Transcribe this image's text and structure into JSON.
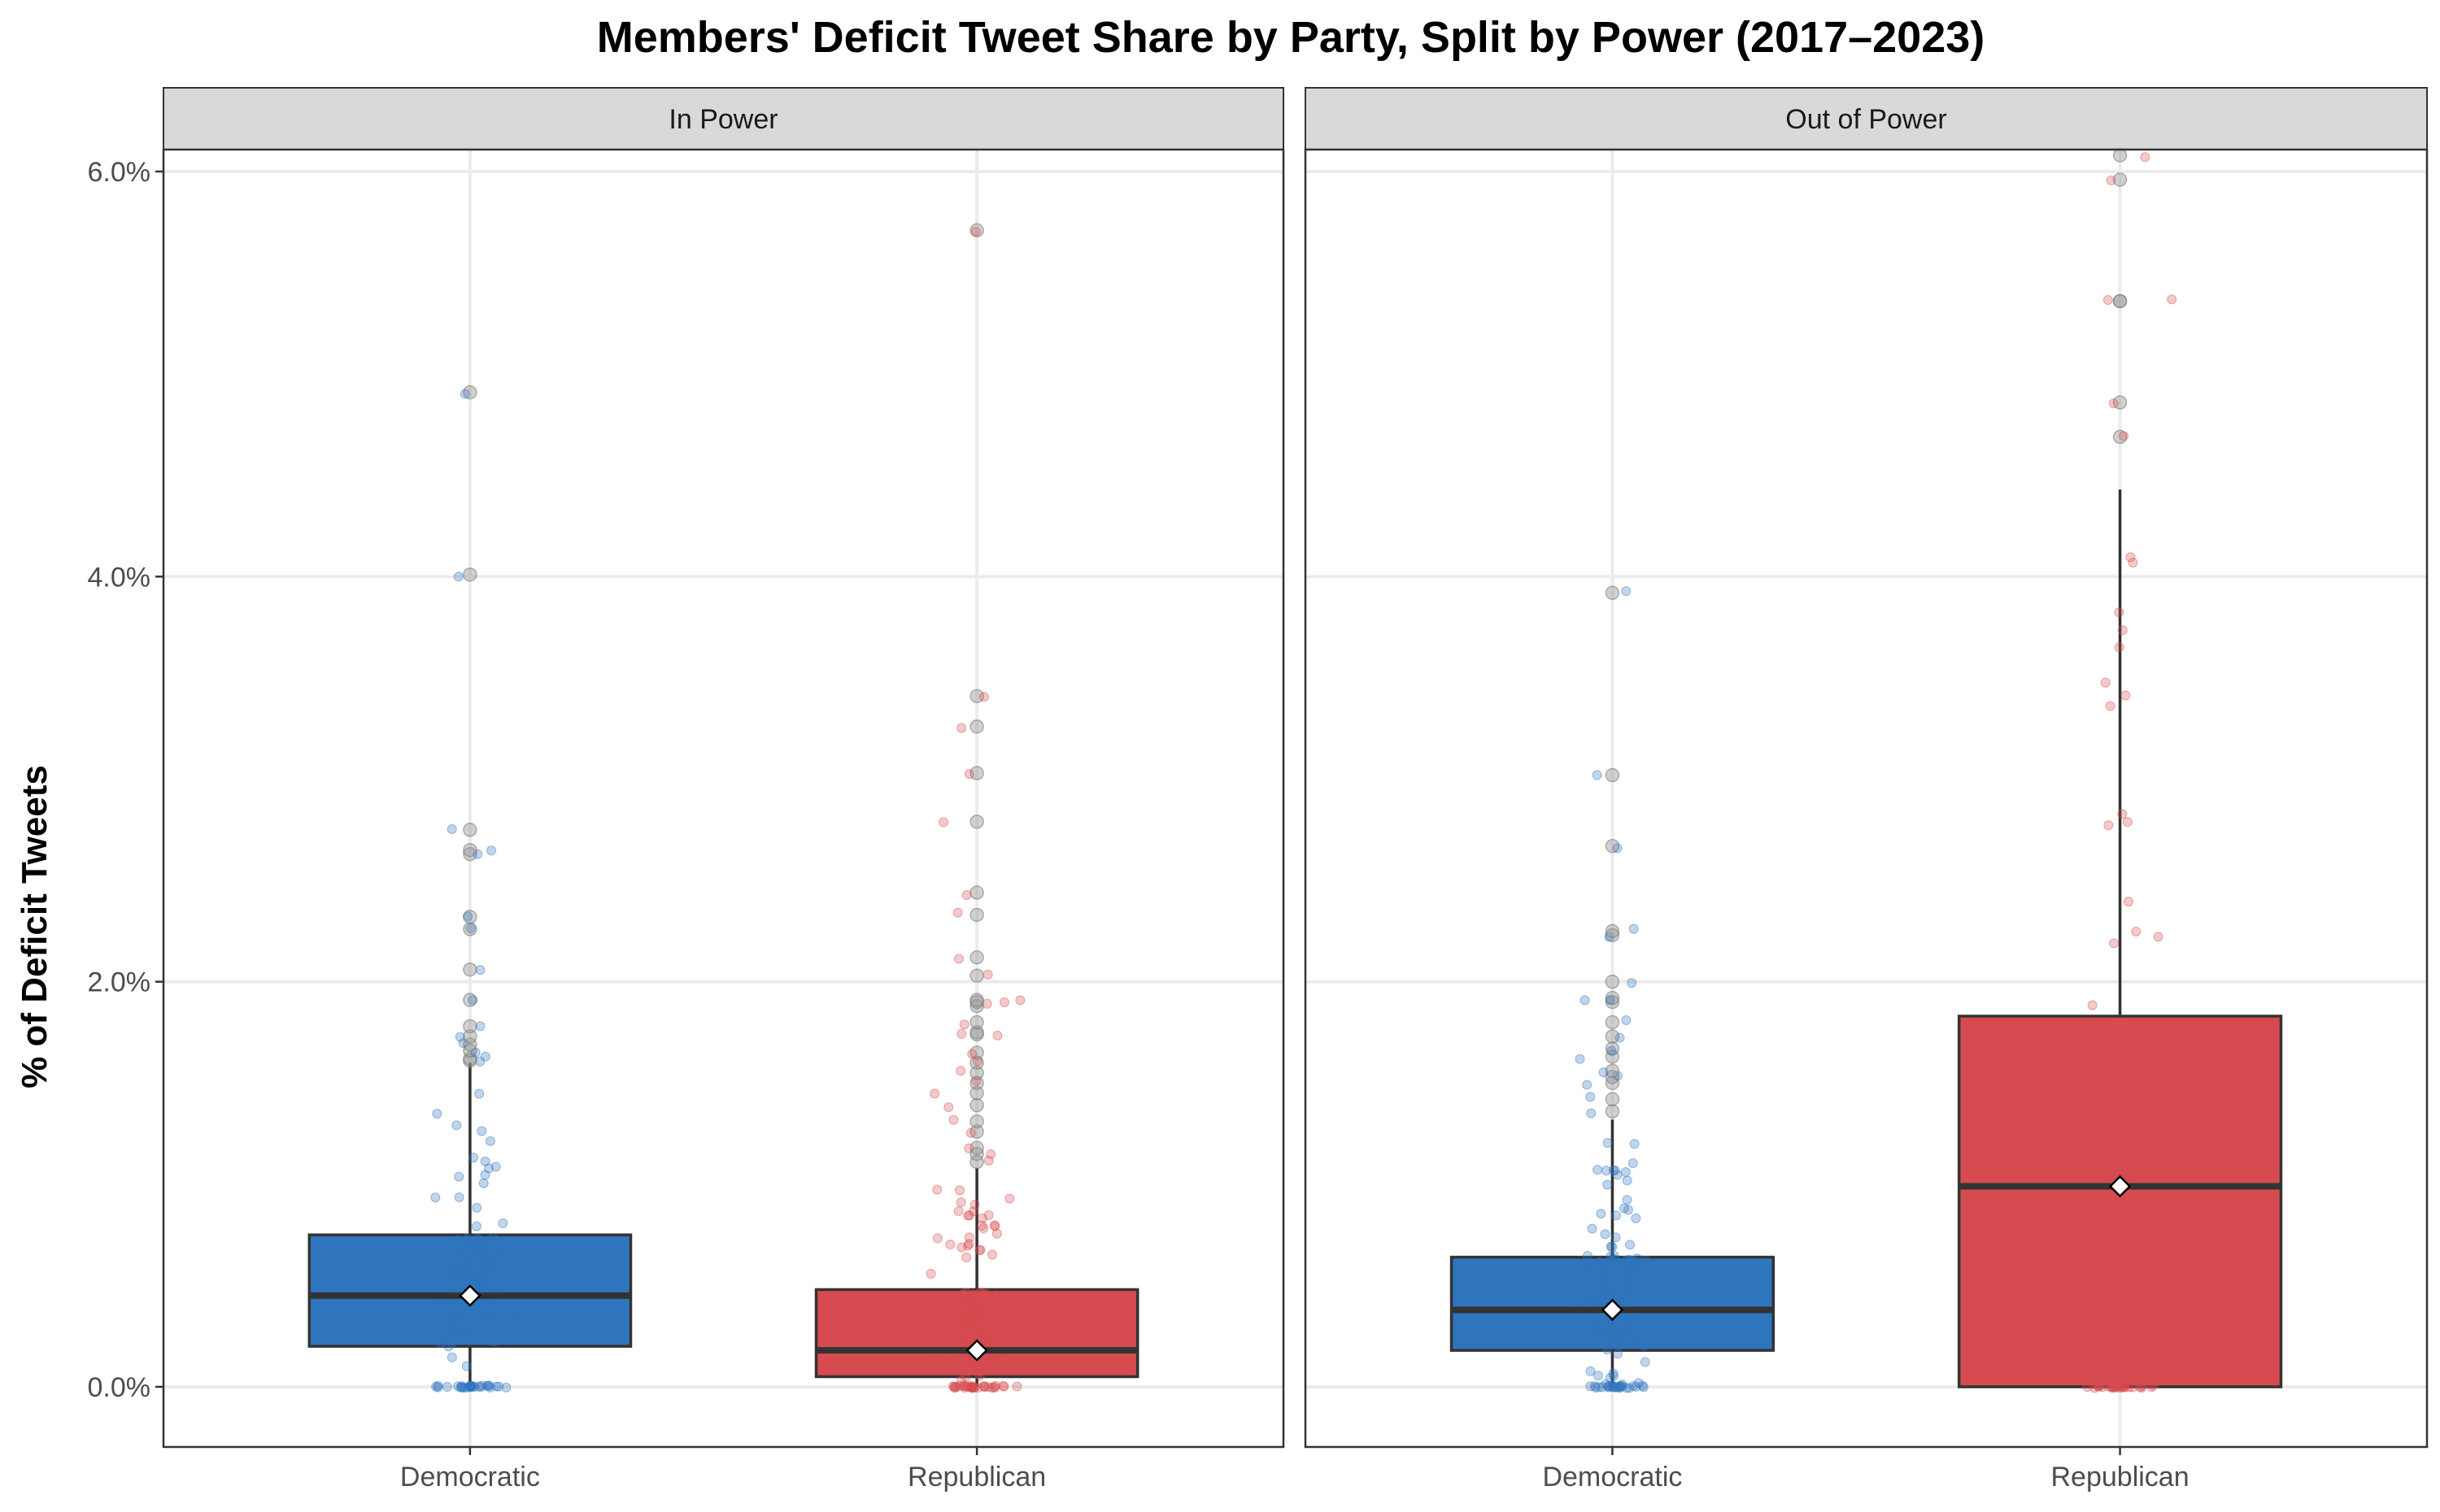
{
  "chart_data": {
    "type": "boxplot",
    "title": "Members' Deficit Tweet Share by Party, Split by Power (2017–2023)",
    "xlabel": "",
    "ylabel": "% of Deficit Tweets",
    "ylim": [
      -0.3,
      6.1
    ],
    "y_ticks": [
      0,
      2,
      4,
      6
    ],
    "y_tick_labels": [
      "0.0%",
      "2.0%",
      "4.0%",
      "6.0%"
    ],
    "categories": [
      "Democratic",
      "Republican"
    ],
    "colors": {
      "Democratic": "#2E75BE",
      "Republican": "#D64B50"
    },
    "panels": [
      {
        "label": "In Power",
        "boxes": [
          {
            "category": "Democratic",
            "q1": 0.2,
            "median": 0.45,
            "q3": 0.75,
            "whisker_low": 0.0,
            "whisker_high": 1.6,
            "mean": 0.45,
            "outliers": [
              1.61,
              1.62,
              1.66,
              1.69,
              1.73,
              1.78,
              1.91,
              2.06,
              2.26,
              2.32,
              2.63,
              2.65,
              2.75,
              4.01,
              4.91
            ]
          },
          {
            "category": "Republican",
            "q1": 0.05,
            "median": 0.18,
            "q3": 0.48,
            "whisker_low": 0.0,
            "whisker_high": 1.08,
            "mean": 0.18,
            "outliers": [
              1.11,
              1.15,
              1.18,
              1.26,
              1.31,
              1.39,
              1.45,
              1.5,
              1.55,
              1.6,
              1.65,
              1.74,
              1.75,
              1.8,
              1.88,
              1.9,
              1.91,
              2.03,
              2.12,
              2.33,
              2.44,
              2.79,
              3.03,
              3.26,
              3.41,
              5.71
            ]
          }
        ]
      },
      {
        "label": "Out of Power",
        "boxes": [
          {
            "category": "Democratic",
            "q1": 0.18,
            "median": 0.38,
            "q3": 0.64,
            "whisker_low": 0.0,
            "whisker_high": 1.32,
            "mean": 0.38,
            "outliers": [
              1.36,
              1.42,
              1.5,
              1.53,
              1.56,
              1.63,
              1.67,
              1.73,
              1.8,
              1.9,
              1.92,
              2.0,
              2.23,
              2.25,
              2.67,
              3.02,
              3.92
            ]
          },
          {
            "category": "Republican",
            "q1": 0.0,
            "median": 0.99,
            "q3": 1.83,
            "whisker_low": 0.0,
            "whisker_high": 4.43,
            "mean": 0.99,
            "outliers": [
              4.69,
              4.86,
              5.36,
              5.36,
              5.96,
              6.08
            ]
          }
        ]
      }
    ],
    "jitter": {
      "description": "semi-transparent jittered individual member points overlaying each box",
      "alpha": 0.3
    }
  }
}
